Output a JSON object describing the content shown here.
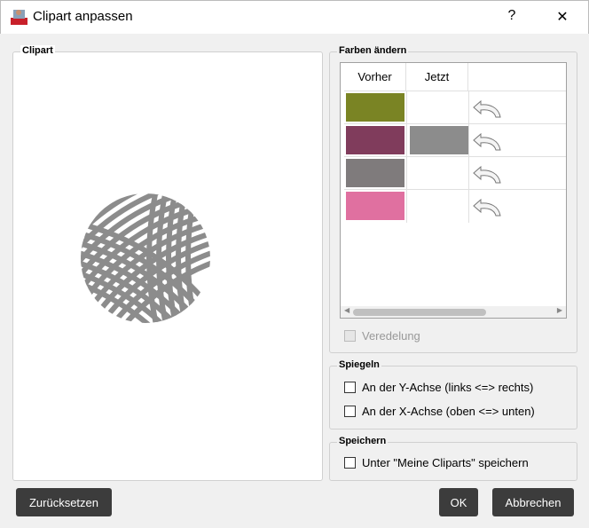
{
  "window": {
    "title": "Clipart anpassen",
    "help": "?",
    "close": "✕"
  },
  "clipart": {
    "label": "Clipart",
    "yarn_color": "#8c8c8c"
  },
  "colors": {
    "label": "Farben ändern",
    "headers": [
      "Vorher",
      "Jetzt",
      ""
    ],
    "rows": [
      {
        "before": "#7a8424",
        "after": null
      },
      {
        "before": "#803c5c",
        "after": "#8c8c8c"
      },
      {
        "before": "#7f7b7c",
        "after": null
      },
      {
        "before": "#e070a0",
        "after": null
      }
    ],
    "scroll_position_percent": 20,
    "veredelung": {
      "label": "Veredelung",
      "checked": false,
      "disabled": true
    }
  },
  "mirror": {
    "label": "Spiegeln",
    "y_axis": {
      "label": "An der Y-Achse (links <=> rechts)",
      "checked": false
    },
    "x_axis": {
      "label": "An der X-Achse (oben <=> unten)",
      "checked": false
    }
  },
  "save": {
    "label": "Speichern",
    "option": {
      "label": "Unter \"Meine Cliparts\" speichern",
      "checked": false
    }
  },
  "buttons": {
    "reset": "Zurücksetzen",
    "ok": "OK",
    "cancel": "Abbrechen"
  }
}
